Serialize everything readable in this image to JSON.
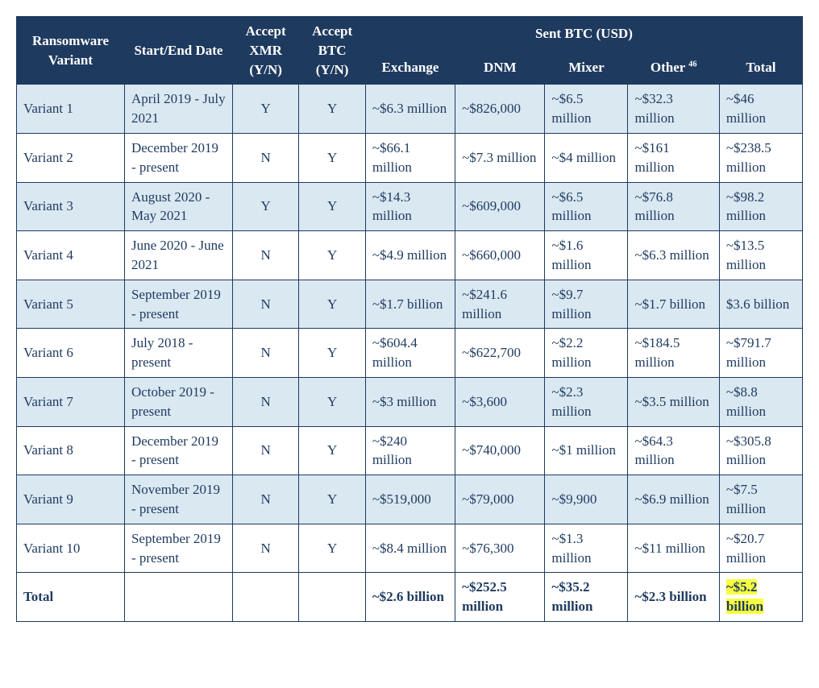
{
  "colors": {
    "header_bg": "#1e3a5f",
    "header_text": "#ffffff",
    "row_alt_bg": "#dae8f2",
    "row_bg": "#ffffff",
    "text": "#1e3a5f",
    "border": "#1e3a5f",
    "highlight": "#f7ff3e"
  },
  "table": {
    "header": {
      "variant": "Ransomware Variant",
      "date": "Start/End Date",
      "accept_xmr": "Accept XMR (Y/N)",
      "accept_btc": "Accept BTC (Y/N)",
      "sent_group": "Sent BTC (USD)",
      "exchange": "Exchange",
      "dnm": "DNM",
      "mixer": "Mixer",
      "other": "Other ",
      "other_sup": "46",
      "total": "Total"
    },
    "rows": [
      {
        "variant": "Variant 1",
        "date": "April 2019 - July 2021",
        "xmr": "Y",
        "btc": "Y",
        "exchange": "~$6.3 million",
        "dnm": "~$826,000",
        "mixer": "~$6.5 million",
        "other": "~$32.3 million",
        "total": "~$46 million"
      },
      {
        "variant": "Variant 2",
        "date": "December 2019 - present",
        "xmr": "N",
        "btc": "Y",
        "exchange": "~$66.1 million",
        "dnm": "~$7.3 million",
        "mixer": "~$4 million",
        "other": "~$161 million",
        "total": "~$238.5 million"
      },
      {
        "variant": "Variant 3",
        "date": "August 2020 - May 2021",
        "xmr": "Y",
        "btc": "Y",
        "exchange": "~$14.3 million",
        "dnm": "~$609,000",
        "mixer": "~$6.5 million",
        "other": "~$76.8 million",
        "total": "~$98.2 million"
      },
      {
        "variant": "Variant 4",
        "date": "June 2020 - June 2021",
        "xmr": "N",
        "btc": "Y",
        "exchange": "~$4.9 million",
        "dnm": "~$660,000",
        "mixer": "~$1.6 million",
        "other": "~$6.3 million",
        "total": "~$13.5 million"
      },
      {
        "variant": "Variant 5",
        "date": "September 2019 - present",
        "xmr": "N",
        "btc": "Y",
        "exchange": "~$1.7 billion",
        "dnm": "~$241.6 million",
        "mixer": "~$9.7 million",
        "other": "~$1.7 billion",
        "total": "$3.6 billion"
      },
      {
        "variant": "Variant 6",
        "date": "July 2018 - present",
        "xmr": "N",
        "btc": "Y",
        "exchange": "~$604.4 million",
        "dnm": "~$622,700",
        "mixer": "~$2.2 million",
        "other": "~$184.5 million",
        "total": "~$791.7 million"
      },
      {
        "variant": "Variant 7",
        "date": "October 2019 - present",
        "xmr": "N",
        "btc": "Y",
        "exchange": "~$3 million",
        "dnm": "~$3,600",
        "mixer": "~$2.3 million",
        "other": "~$3.5 million",
        "total": "~$8.8 million"
      },
      {
        "variant": "Variant 8",
        "date": "December 2019 - present",
        "xmr": "N",
        "btc": "Y",
        "exchange": "~$240 million",
        "dnm": "~$740,000",
        "mixer": "~$1 million",
        "other": "~$64.3 million",
        "total": "~$305.8 million"
      },
      {
        "variant": "Variant 9",
        "date": "November 2019 - present",
        "xmr": "N",
        "btc": "Y",
        "exchange": "~$519,000",
        "dnm": "~$79,000",
        "mixer": "~$9,900",
        "other": "~$6.9 million",
        "total": "~$7.5 million"
      },
      {
        "variant": "Variant 10",
        "date": "September 2019 - present",
        "xmr": "N",
        "btc": "Y",
        "exchange": "~$8.4 million",
        "dnm": "~$76,300",
        "mixer": "~$1.3 million",
        "other": "~$11 million",
        "total": "~$20.7 million"
      }
    ],
    "total_row": {
      "label": "Total",
      "exchange": "~$2.6 billion",
      "dnm": "~$252.5 million",
      "mixer": "~$35.2 million",
      "other": "~$2.3 billion",
      "total": "~$5.2 billion"
    }
  }
}
